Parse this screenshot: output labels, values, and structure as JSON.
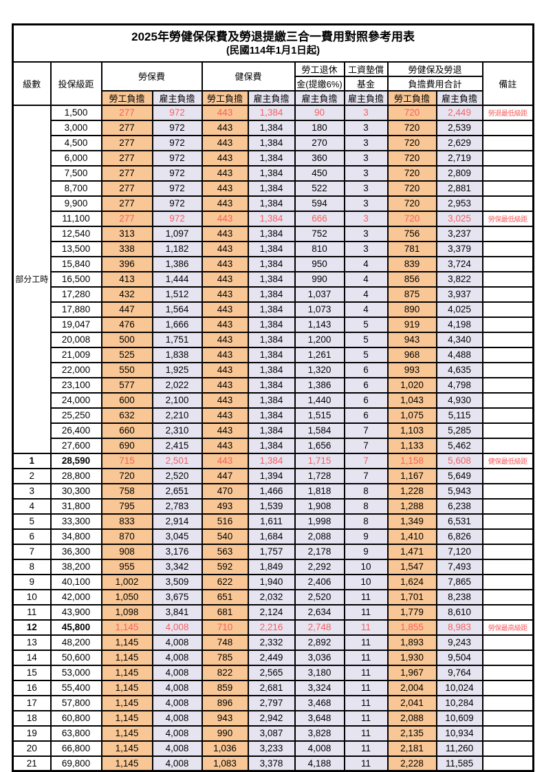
{
  "title": "2025年勞健保保費及勞退提繳三合一費用對照參考用表",
  "subtitle": "(民國114年1月1日起)",
  "headers": {
    "level": "級數",
    "bracket": "投保級距",
    "labor_fee": "勞保費",
    "health_fee": "健保費",
    "pension_line1": "勞工退休",
    "pension_line2": "金(提繳6%)",
    "wage_fund_line1": "工資墊償",
    "wage_fund_line2": "基金",
    "total_line1": "勞健保及勞退",
    "total_line2": "負擔費用合計",
    "remark": "備註",
    "employee_share": "勞工負擔",
    "employer_share": "雇主負擔"
  },
  "part_time_label": "部分工時",
  "colors": {
    "employee_bg": "#F9C795",
    "employer_bg": "#E6E4F1",
    "highlight_red": "#F75E5E",
    "border": "#000000"
  },
  "rows": [
    {
      "level": "",
      "bracket": "1,500",
      "labor_emp": "277",
      "labor_er": "972",
      "health_emp": "443",
      "health_er": "1,384",
      "pension": "90",
      "fund": "3",
      "total_emp": "720",
      "total_er": "2,449",
      "remark": "勞退最低級距",
      "red": true,
      "bold": false
    },
    {
      "level": "",
      "bracket": "3,000",
      "labor_emp": "277",
      "labor_er": "972",
      "health_emp": "443",
      "health_er": "1,384",
      "pension": "180",
      "fund": "3",
      "total_emp": "720",
      "total_er": "2,539",
      "remark": "",
      "red": false,
      "bold": false
    },
    {
      "level": "",
      "bracket": "4,500",
      "labor_emp": "277",
      "labor_er": "972",
      "health_emp": "443",
      "health_er": "1,384",
      "pension": "270",
      "fund": "3",
      "total_emp": "720",
      "total_er": "2,629",
      "remark": "",
      "red": false,
      "bold": false
    },
    {
      "level": "",
      "bracket": "6,000",
      "labor_emp": "277",
      "labor_er": "972",
      "health_emp": "443",
      "health_er": "1,384",
      "pension": "360",
      "fund": "3",
      "total_emp": "720",
      "total_er": "2,719",
      "remark": "",
      "red": false,
      "bold": false
    },
    {
      "level": "",
      "bracket": "7,500",
      "labor_emp": "277",
      "labor_er": "972",
      "health_emp": "443",
      "health_er": "1,384",
      "pension": "450",
      "fund": "3",
      "total_emp": "720",
      "total_er": "2,809",
      "remark": "",
      "red": false,
      "bold": false
    },
    {
      "level": "",
      "bracket": "8,700",
      "labor_emp": "277",
      "labor_er": "972",
      "health_emp": "443",
      "health_er": "1,384",
      "pension": "522",
      "fund": "3",
      "total_emp": "720",
      "total_er": "2,881",
      "remark": "",
      "red": false,
      "bold": false
    },
    {
      "level": "",
      "bracket": "9,900",
      "labor_emp": "277",
      "labor_er": "972",
      "health_emp": "443",
      "health_er": "1,384",
      "pension": "594",
      "fund": "3",
      "total_emp": "720",
      "total_er": "2,953",
      "remark": "",
      "red": false,
      "bold": false
    },
    {
      "level": "",
      "bracket": "11,100",
      "labor_emp": "277",
      "labor_er": "972",
      "health_emp": "443",
      "health_er": "1,384",
      "pension": "666",
      "fund": "3",
      "total_emp": "720",
      "total_er": "3,025",
      "remark": "勞保最低級距",
      "red": true,
      "bold": false
    },
    {
      "level": "",
      "bracket": "12,540",
      "labor_emp": "313",
      "labor_er": "1,097",
      "health_emp": "443",
      "health_er": "1,384",
      "pension": "752",
      "fund": "3",
      "total_emp": "756",
      "total_er": "3,237",
      "remark": "",
      "red": false,
      "bold": false
    },
    {
      "level": "",
      "bracket": "13,500",
      "labor_emp": "338",
      "labor_er": "1,182",
      "health_emp": "443",
      "health_er": "1,384",
      "pension": "810",
      "fund": "3",
      "total_emp": "781",
      "total_er": "3,379",
      "remark": "",
      "red": false,
      "bold": false
    },
    {
      "level": "",
      "bracket": "15,840",
      "labor_emp": "396",
      "labor_er": "1,386",
      "health_emp": "443",
      "health_er": "1,384",
      "pension": "950",
      "fund": "4",
      "total_emp": "839",
      "total_er": "3,724",
      "remark": "",
      "red": false,
      "bold": false
    },
    {
      "level": "",
      "bracket": "16,500",
      "labor_emp": "413",
      "labor_er": "1,444",
      "health_emp": "443",
      "health_er": "1,384",
      "pension": "990",
      "fund": "4",
      "total_emp": "856",
      "total_er": "3,822",
      "remark": "",
      "red": false,
      "bold": false
    },
    {
      "level": "",
      "bracket": "17,280",
      "labor_emp": "432",
      "labor_er": "1,512",
      "health_emp": "443",
      "health_er": "1,384",
      "pension": "1,037",
      "fund": "4",
      "total_emp": "875",
      "total_er": "3,937",
      "remark": "",
      "red": false,
      "bold": false
    },
    {
      "level": "",
      "bracket": "17,880",
      "labor_emp": "447",
      "labor_er": "1,564",
      "health_emp": "443",
      "health_er": "1,384",
      "pension": "1,073",
      "fund": "4",
      "total_emp": "890",
      "total_er": "4,025",
      "remark": "",
      "red": false,
      "bold": false
    },
    {
      "level": "",
      "bracket": "19,047",
      "labor_emp": "476",
      "labor_er": "1,666",
      "health_emp": "443",
      "health_er": "1,384",
      "pension": "1,143",
      "fund": "5",
      "total_emp": "919",
      "total_er": "4,198",
      "remark": "",
      "red": false,
      "bold": false
    },
    {
      "level": "",
      "bracket": "20,008",
      "labor_emp": "500",
      "labor_er": "1,751",
      "health_emp": "443",
      "health_er": "1,384",
      "pension": "1,200",
      "fund": "5",
      "total_emp": "943",
      "total_er": "4,340",
      "remark": "",
      "red": false,
      "bold": false
    },
    {
      "level": "",
      "bracket": "21,009",
      "labor_emp": "525",
      "labor_er": "1,838",
      "health_emp": "443",
      "health_er": "1,384",
      "pension": "1,261",
      "fund": "5",
      "total_emp": "968",
      "total_er": "4,488",
      "remark": "",
      "red": false,
      "bold": false
    },
    {
      "level": "",
      "bracket": "22,000",
      "labor_emp": "550",
      "labor_er": "1,925",
      "health_emp": "443",
      "health_er": "1,384",
      "pension": "1,320",
      "fund": "6",
      "total_emp": "993",
      "total_er": "4,635",
      "remark": "",
      "red": false,
      "bold": false
    },
    {
      "level": "",
      "bracket": "23,100",
      "labor_emp": "577",
      "labor_er": "2,022",
      "health_emp": "443",
      "health_er": "1,384",
      "pension": "1,386",
      "fund": "6",
      "total_emp": "1,020",
      "total_er": "4,798",
      "remark": "",
      "red": false,
      "bold": false
    },
    {
      "level": "",
      "bracket": "24,000",
      "labor_emp": "600",
      "labor_er": "2,100",
      "health_emp": "443",
      "health_er": "1,384",
      "pension": "1,440",
      "fund": "6",
      "total_emp": "1,043",
      "total_er": "4,930",
      "remark": "",
      "red": false,
      "bold": false
    },
    {
      "level": "",
      "bracket": "25,250",
      "labor_emp": "632",
      "labor_er": "2,210",
      "health_emp": "443",
      "health_er": "1,384",
      "pension": "1,515",
      "fund": "6",
      "total_emp": "1,075",
      "total_er": "5,115",
      "remark": "",
      "red": false,
      "bold": false
    },
    {
      "level": "",
      "bracket": "26,400",
      "labor_emp": "660",
      "labor_er": "2,310",
      "health_emp": "443",
      "health_er": "1,384",
      "pension": "1,584",
      "fund": "7",
      "total_emp": "1,103",
      "total_er": "5,285",
      "remark": "",
      "red": false,
      "bold": false
    },
    {
      "level": "",
      "bracket": "27,600",
      "labor_emp": "690",
      "labor_er": "2,415",
      "health_emp": "443",
      "health_er": "1,384",
      "pension": "1,656",
      "fund": "7",
      "total_emp": "1,133",
      "total_er": "5,462",
      "remark": "",
      "red": false,
      "bold": false
    },
    {
      "level": "1",
      "bracket": "28,590",
      "labor_emp": "715",
      "labor_er": "2,501",
      "health_emp": "443",
      "health_er": "1,384",
      "pension": "1,715",
      "fund": "7",
      "total_emp": "1,158",
      "total_er": "5,608",
      "remark": "健保最低級距",
      "red": true,
      "bold": true
    },
    {
      "level": "2",
      "bracket": "28,800",
      "labor_emp": "720",
      "labor_er": "2,520",
      "health_emp": "447",
      "health_er": "1,394",
      "pension": "1,728",
      "fund": "7",
      "total_emp": "1,167",
      "total_er": "5,649",
      "remark": "",
      "red": false,
      "bold": false
    },
    {
      "level": "3",
      "bracket": "30,300",
      "labor_emp": "758",
      "labor_er": "2,651",
      "health_emp": "470",
      "health_er": "1,466",
      "pension": "1,818",
      "fund": "8",
      "total_emp": "1,228",
      "total_er": "5,943",
      "remark": "",
      "red": false,
      "bold": false
    },
    {
      "level": "4",
      "bracket": "31,800",
      "labor_emp": "795",
      "labor_er": "2,783",
      "health_emp": "493",
      "health_er": "1,539",
      "pension": "1,908",
      "fund": "8",
      "total_emp": "1,288",
      "total_er": "6,238",
      "remark": "",
      "red": false,
      "bold": false
    },
    {
      "level": "5",
      "bracket": "33,300",
      "labor_emp": "833",
      "labor_er": "2,914",
      "health_emp": "516",
      "health_er": "1,611",
      "pension": "1,998",
      "fund": "8",
      "total_emp": "1,349",
      "total_er": "6,531",
      "remark": "",
      "red": false,
      "bold": false
    },
    {
      "level": "6",
      "bracket": "34,800",
      "labor_emp": "870",
      "labor_er": "3,045",
      "health_emp": "540",
      "health_er": "1,684",
      "pension": "2,088",
      "fund": "9",
      "total_emp": "1,410",
      "total_er": "6,826",
      "remark": "",
      "red": false,
      "bold": false
    },
    {
      "level": "7",
      "bracket": "36,300",
      "labor_emp": "908",
      "labor_er": "3,176",
      "health_emp": "563",
      "health_er": "1,757",
      "pension": "2,178",
      "fund": "9",
      "total_emp": "1,471",
      "total_er": "7,120",
      "remark": "",
      "red": false,
      "bold": false
    },
    {
      "level": "8",
      "bracket": "38,200",
      "labor_emp": "955",
      "labor_er": "3,342",
      "health_emp": "592",
      "health_er": "1,849",
      "pension": "2,292",
      "fund": "10",
      "total_emp": "1,547",
      "total_er": "7,493",
      "remark": "",
      "red": false,
      "bold": false
    },
    {
      "level": "9",
      "bracket": "40,100",
      "labor_emp": "1,002",
      "labor_er": "3,509",
      "health_emp": "622",
      "health_er": "1,940",
      "pension": "2,406",
      "fund": "10",
      "total_emp": "1,624",
      "total_er": "7,865",
      "remark": "",
      "red": false,
      "bold": false
    },
    {
      "level": "10",
      "bracket": "42,000",
      "labor_emp": "1,050",
      "labor_er": "3,675",
      "health_emp": "651",
      "health_er": "2,032",
      "pension": "2,520",
      "fund": "11",
      "total_emp": "1,701",
      "total_er": "8,238",
      "remark": "",
      "red": false,
      "bold": false
    },
    {
      "level": "11",
      "bracket": "43,900",
      "labor_emp": "1,098",
      "labor_er": "3,841",
      "health_emp": "681",
      "health_er": "2,124",
      "pension": "2,634",
      "fund": "11",
      "total_emp": "1,779",
      "total_er": "8,610",
      "remark": "",
      "red": false,
      "bold": false
    },
    {
      "level": "12",
      "bracket": "45,800",
      "labor_emp": "1,145",
      "labor_er": "4,008",
      "health_emp": "710",
      "health_er": "2,216",
      "pension": "2,748",
      "fund": "11",
      "total_emp": "1,855",
      "total_er": "8,983",
      "remark": "勞保最高級距",
      "red": true,
      "bold": true
    },
    {
      "level": "13",
      "bracket": "48,200",
      "labor_emp": "1,145",
      "labor_er": "4,008",
      "health_emp": "748",
      "health_er": "2,332",
      "pension": "2,892",
      "fund": "11",
      "total_emp": "1,893",
      "total_er": "9,243",
      "remark": "",
      "red": false,
      "bold": false
    },
    {
      "level": "14",
      "bracket": "50,600",
      "labor_emp": "1,145",
      "labor_er": "4,008",
      "health_emp": "785",
      "health_er": "2,449",
      "pension": "3,036",
      "fund": "11",
      "total_emp": "1,930",
      "total_er": "9,504",
      "remark": "",
      "red": false,
      "bold": false
    },
    {
      "level": "15",
      "bracket": "53,000",
      "labor_emp": "1,145",
      "labor_er": "4,008",
      "health_emp": "822",
      "health_er": "2,565",
      "pension": "3,180",
      "fund": "11",
      "total_emp": "1,967",
      "total_er": "9,764",
      "remark": "",
      "red": false,
      "bold": false
    },
    {
      "level": "16",
      "bracket": "55,400",
      "labor_emp": "1,145",
      "labor_er": "4,008",
      "health_emp": "859",
      "health_er": "2,681",
      "pension": "3,324",
      "fund": "11",
      "total_emp": "2,004",
      "total_er": "10,024",
      "remark": "",
      "red": false,
      "bold": false
    },
    {
      "level": "17",
      "bracket": "57,800",
      "labor_emp": "1,145",
      "labor_er": "4,008",
      "health_emp": "896",
      "health_er": "2,797",
      "pension": "3,468",
      "fund": "11",
      "total_emp": "2,041",
      "total_er": "10,284",
      "remark": "",
      "red": false,
      "bold": false
    },
    {
      "level": "18",
      "bracket": "60,800",
      "labor_emp": "1,145",
      "labor_er": "4,008",
      "health_emp": "943",
      "health_er": "2,942",
      "pension": "3,648",
      "fund": "11",
      "total_emp": "2,088",
      "total_er": "10,609",
      "remark": "",
      "red": false,
      "bold": false
    },
    {
      "level": "19",
      "bracket": "63,800",
      "labor_emp": "1,145",
      "labor_er": "4,008",
      "health_emp": "990",
      "health_er": "3,087",
      "pension": "3,828",
      "fund": "11",
      "total_emp": "2,135",
      "total_er": "10,934",
      "remark": "",
      "red": false,
      "bold": false
    },
    {
      "level": "20",
      "bracket": "66,800",
      "labor_emp": "1,145",
      "labor_er": "4,008",
      "health_emp": "1,036",
      "health_er": "3,233",
      "pension": "4,008",
      "fund": "11",
      "total_emp": "2,181",
      "total_er": "11,260",
      "remark": "",
      "red": false,
      "bold": false
    },
    {
      "level": "21",
      "bracket": "69,800",
      "labor_emp": "1,145",
      "labor_er": "4,008",
      "health_emp": "1,083",
      "health_er": "3,378",
      "pension": "4,188",
      "fund": "11",
      "total_emp": "2,228",
      "total_er": "11,585",
      "remark": "",
      "red": false,
      "bold": false
    }
  ]
}
